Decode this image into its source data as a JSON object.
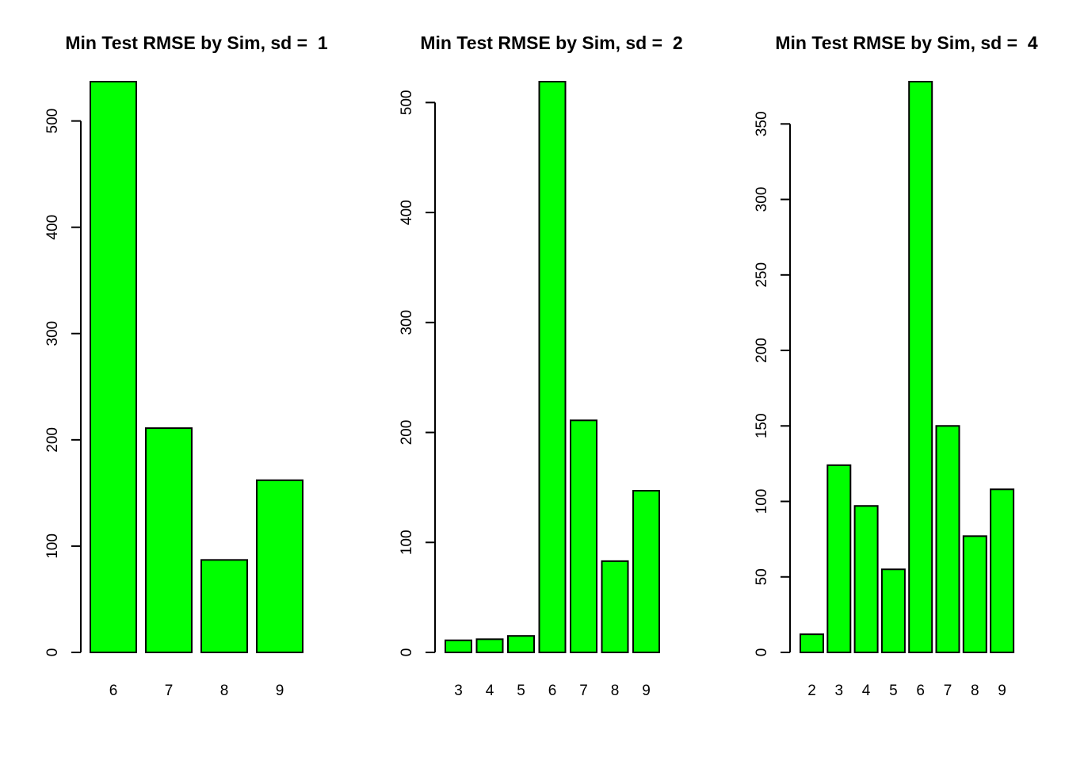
{
  "colors": {
    "bar_fill": "#00ff00",
    "bar_stroke": "#000000",
    "background": "#ffffff"
  },
  "chart_data": [
    {
      "type": "bar",
      "title": "Min Test RMSE by Sim, sd =  1",
      "xlabel": "",
      "ylabel": "",
      "categories": [
        "6",
        "7",
        "8",
        "9"
      ],
      "values": [
        537,
        211,
        87,
        162
      ],
      "ylim": [
        0,
        537
      ],
      "yticks": [
        0,
        100,
        200,
        300,
        400,
        500
      ],
      "grid": false,
      "legend": "none"
    },
    {
      "type": "bar",
      "title": "Min Test RMSE by Sim, sd =  2",
      "xlabel": "",
      "ylabel": "",
      "categories": [
        "3",
        "4",
        "5",
        "6",
        "7",
        "8",
        "9"
      ],
      "values": [
        11,
        12,
        15,
        519,
        211,
        83,
        147
      ],
      "ylim": [
        0,
        519
      ],
      "yticks": [
        0,
        100,
        200,
        300,
        400,
        500
      ],
      "grid": false,
      "legend": "none"
    },
    {
      "type": "bar",
      "title": "Min Test RMSE by Sim, sd =  4",
      "xlabel": "",
      "ylabel": "",
      "categories": [
        "2",
        "3",
        "4",
        "5",
        "6",
        "7",
        "8",
        "9"
      ],
      "values": [
        12,
        124,
        97,
        55,
        378,
        150,
        77,
        108
      ],
      "ylim": [
        0,
        378
      ],
      "yticks": [
        0,
        50,
        100,
        150,
        200,
        250,
        300,
        350
      ],
      "grid": false,
      "legend": "none"
    }
  ]
}
